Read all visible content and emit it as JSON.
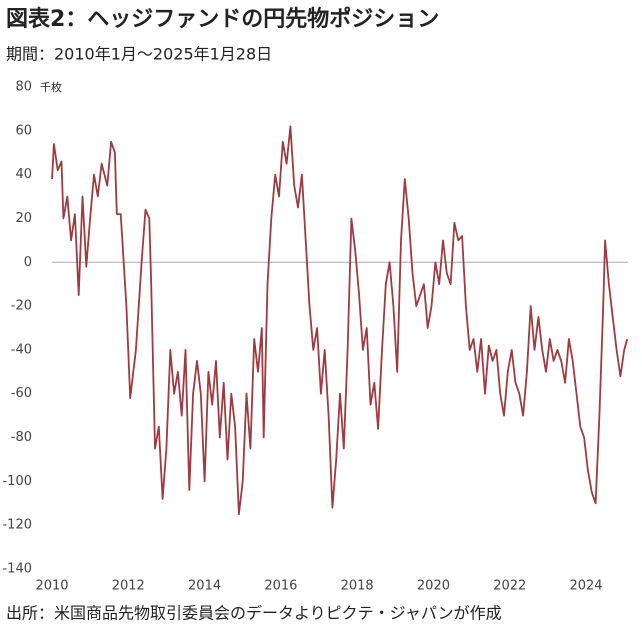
{
  "chart_data": {
    "type": "line",
    "title": "図表2：ヘッジファンドの円先物ポジション",
    "subtitle": "期間：2010年1月～2025年1月28日",
    "y_unit": "千枚",
    "source": "出所：米国商品先物取引委員会のデータよりピクテ・ジャパンが作成",
    "x": [
      2010.0,
      2010.05,
      2010.15,
      2010.25,
      2010.3,
      2010.4,
      2010.5,
      2010.6,
      2010.7,
      2010.8,
      2010.9,
      2011.0,
      2011.1,
      2011.2,
      2011.3,
      2011.45,
      2011.55,
      2011.65,
      2011.7,
      2011.8,
      2011.95,
      2012.05,
      2012.2,
      2012.35,
      2012.45,
      2012.55,
      2012.6,
      2012.7,
      2012.8,
      2012.9,
      2013.0,
      2013.1,
      2013.2,
      2013.3,
      2013.4,
      2013.5,
      2013.6,
      2013.7,
      2013.8,
      2013.9,
      2014.0,
      2014.1,
      2014.2,
      2014.3,
      2014.4,
      2014.5,
      2014.6,
      2014.7,
      2014.8,
      2014.9,
      2015.0,
      2015.1,
      2015.2,
      2015.3,
      2015.4,
      2015.5,
      2015.55,
      2015.65,
      2015.75,
      2015.85,
      2015.95,
      2016.05,
      2016.15,
      2016.25,
      2016.35,
      2016.45,
      2016.55,
      2016.65,
      2016.75,
      2016.85,
      2016.95,
      2017.05,
      2017.15,
      2017.25,
      2017.35,
      2017.45,
      2017.55,
      2017.65,
      2017.75,
      2017.85,
      2017.95,
      2018.05,
      2018.15,
      2018.25,
      2018.35,
      2018.45,
      2018.55,
      2018.65,
      2018.75,
      2018.85,
      2018.95,
      2019.05,
      2019.15,
      2019.25,
      2019.35,
      2019.45,
      2019.55,
      2019.65,
      2019.75,
      2019.85,
      2019.95,
      2020.05,
      2020.15,
      2020.25,
      2020.35,
      2020.45,
      2020.55,
      2020.65,
      2020.75,
      2020.85,
      2020.95,
      2021.05,
      2021.15,
      2021.25,
      2021.35,
      2021.45,
      2021.55,
      2021.65,
      2021.75,
      2021.85,
      2021.95,
      2022.05,
      2022.15,
      2022.25,
      2022.35,
      2022.45,
      2022.55,
      2022.65,
      2022.75,
      2022.85,
      2022.95,
      2023.05,
      2023.15,
      2023.25,
      2023.35,
      2023.45,
      2023.55,
      2023.65,
      2023.75,
      2023.85,
      2023.95,
      2024.05,
      2024.15,
      2024.25,
      2024.35,
      2024.45,
      2024.5,
      2024.6,
      2024.7,
      2024.8,
      2024.9,
      2025.0,
      2025.08
    ],
    "series": [
      {
        "color": "#9e3b40",
        "values": [
          38,
          54,
          42,
          46,
          20,
          30,
          10,
          22,
          -15,
          30,
          -2,
          20,
          40,
          30,
          45,
          35,
          55,
          50,
          22,
          22,
          -20,
          -62,
          -40,
          0,
          24,
          20,
          -10,
          -85,
          -75,
          -108,
          -85,
          -40,
          -60,
          -50,
          -70,
          -40,
          -104,
          -60,
          -45,
          -60,
          -100,
          -50,
          -65,
          -45,
          -80,
          -55,
          -90,
          -60,
          -75,
          -115,
          -100,
          -60,
          -85,
          -35,
          -50,
          -30,
          -80,
          -10,
          20,
          40,
          30,
          55,
          45,
          62,
          35,
          25,
          40,
          10,
          -20,
          -40,
          -30,
          -60,
          -40,
          -70,
          -112,
          -90,
          -60,
          -85,
          -40,
          20,
          5,
          -15,
          -40,
          -30,
          -65,
          -55,
          -76,
          -40,
          -10,
          0,
          -20,
          -50,
          10,
          38,
          20,
          -5,
          -20,
          -15,
          -10,
          -30,
          -20,
          0,
          -10,
          10,
          -5,
          -10,
          18,
          10,
          12,
          -20,
          -40,
          -35,
          -50,
          -35,
          -60,
          -38,
          -45,
          -40,
          -60,
          -70,
          -50,
          -40,
          -55,
          -60,
          -70,
          -50,
          -20,
          -40,
          -25,
          -40,
          -50,
          -35,
          -45,
          -40,
          -45,
          -55,
          -35,
          -45,
          -60,
          -75,
          -80,
          -95,
          -105,
          -110,
          -70,
          -20,
          10,
          -10,
          -25,
          -40,
          -52,
          -40,
          -35
        ]
      }
    ],
    "xlim": [
      2010,
      2025.1
    ],
    "xticks": [
      2010,
      2012,
      2014,
      2016,
      2018,
      2020,
      2022,
      2024
    ],
    "ylim": [
      -140,
      80
    ],
    "yticks": [
      -140,
      -120,
      -100,
      -80,
      -60,
      -40,
      -20,
      0,
      20,
      40,
      60,
      80
    ],
    "hline": 0,
    "grid": false
  }
}
